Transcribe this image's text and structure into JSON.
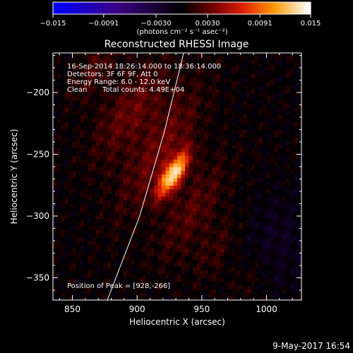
{
  "chart_data": {
    "type": "heatmap",
    "title": "Reconstructed RHESSI Image",
    "xlabel": "Heliocentric X (arcsec)",
    "ylabel": "Heliocentric Y (arcsec)",
    "xlim": [
      835,
      1027
    ],
    "ylim": [
      -368,
      -168
    ],
    "xticks": [
      850,
      900,
      950,
      1000
    ],
    "xtick_labels": [
      "850",
      "900",
      "950",
      "1000"
    ],
    "yticks": [
      -200,
      -250,
      -300,
      -350
    ],
    "ytick_labels": [
      "−200",
      "−250",
      "−300",
      "−350"
    ],
    "colorbar": {
      "range": [
        -0.015,
        0.015
      ],
      "ticks": [
        -0.015,
        -0.0091,
        -0.003,
        0.003,
        0.0091,
        0.015
      ],
      "tick_labels": [
        "−0.015",
        "−0.0091",
        "−0.0030",
        "0.0030",
        "0.0091",
        "0.015"
      ],
      "unit_label": "(photons cm⁻² s⁻¹ asec⁻²)"
    },
    "annotations": [
      "16-Sep-2014 18:26:14.000 to 18:36:14.000",
      "Detectors: 3F 6F 9F, Att 0",
      "Energy Range: 6.0 - 12.0 keV",
      "Clean",
      "Total counts: 4.49E+04"
    ],
    "peak_label": "Position of Peak = [928,-266]",
    "peak": {
      "x": 928,
      "y": -266,
      "value": 0.015
    },
    "sources": [
      {
        "x": 928,
        "y": -266,
        "sx": 5,
        "sy": 14,
        "angle_deg": 30,
        "amp": 0.0135
      },
      {
        "x": 918,
        "y": -247,
        "sx": 12,
        "sy": 40,
        "angle_deg": 30,
        "amp": 0.0034
      },
      {
        "x": 895,
        "y": -215,
        "sx": 13,
        "sy": 32,
        "angle_deg": 32,
        "amp": 0.0032
      },
      {
        "x": 868,
        "y": -180,
        "sx": 8,
        "sy": 22,
        "angle_deg": 32,
        "amp": 0.0022
      },
      {
        "x": 943,
        "y": -295,
        "sx": 12,
        "sy": 32,
        "angle_deg": 30,
        "amp": 0.0026
      },
      {
        "x": 963,
        "y": -325,
        "sx": 9,
        "sy": 22,
        "angle_deg": 30,
        "amp": 0.0018
      },
      {
        "x": 985,
        "y": -352,
        "sx": 8,
        "sy": 16,
        "angle_deg": 30,
        "amp": 0.0012
      }
    ],
    "limb_curve": [
      {
        "x": 936,
        "y": -168
      },
      {
        "x": 921,
        "y": -232
      },
      {
        "x": 902,
        "y": -300
      },
      {
        "x": 877,
        "y": -368
      }
    ],
    "grid": false
  },
  "footer_timestamp": "9-May-2017 16:54"
}
